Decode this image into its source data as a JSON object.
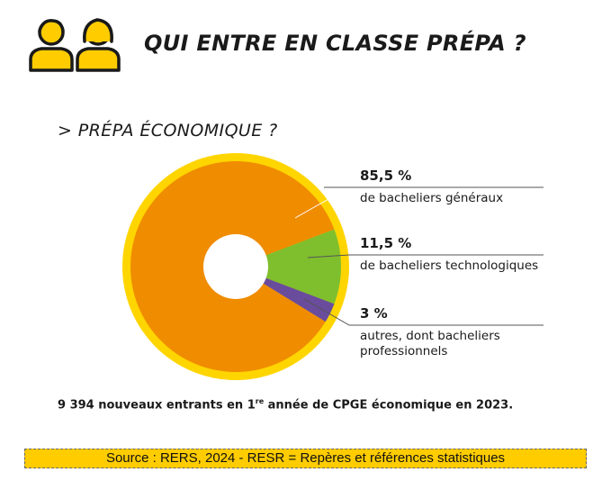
{
  "header": {
    "title": "QUI ENTRE EN CLASSE PRÉPA ?",
    "icon": "people-icon",
    "accent_color": "#ffcc00"
  },
  "section": {
    "title": "> PRÉPA ÉCONOMIQUE ?"
  },
  "chart_data": {
    "type": "pie",
    "donut": true,
    "ring_color": "#ffd500",
    "title": "> PRÉPA ÉCONOMIQUE ?",
    "slices": [
      {
        "value_label": "85,5 %",
        "label": "de bacheliers généraux",
        "value": 85.5,
        "color": "#f08c00"
      },
      {
        "value_label": "11,5 %",
        "label": "de bacheliers technologiques",
        "value": 11.5,
        "color": "#7fbf2e"
      },
      {
        "value_label": "3 %",
        "label": "autres, dont bacheliers professionnels",
        "label_lines": [
          "autres, dont bacheliers",
          "professionnels"
        ],
        "value": 3,
        "color": "#6a4c9c"
      }
    ]
  },
  "footnote": {
    "before": "9 394 nouveaux entrants en 1",
    "sup": "re",
    "after": " année de CPGE économique en 2023."
  },
  "source": {
    "text": "Source : RERS, 2024  - RESR = Repères et références statistiques",
    "bar_color": "#ffcc00"
  }
}
